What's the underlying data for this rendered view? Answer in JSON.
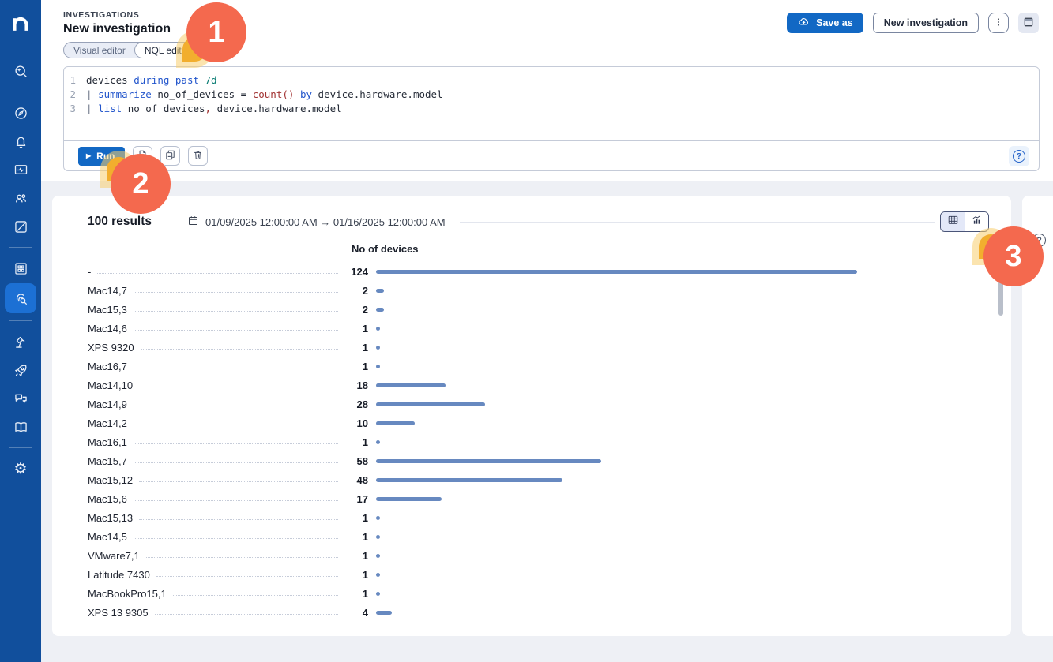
{
  "colors": {
    "sidebar_bg": "#114F9C",
    "sidebar_active_bg": "#1C70D4",
    "primary_blue": "#1268C4",
    "bar_blue": "#6789C0",
    "badge_red": "#F4694E",
    "cursor_orange": "#F2AE2E",
    "page_bg": "#EEF0F5"
  },
  "sidebar": {
    "logo": "n",
    "items": [
      {
        "name": "history-search-icon"
      },
      {
        "name": "compass-icon"
      },
      {
        "name": "bell-icon"
      },
      {
        "name": "monitor-pulse-icon"
      },
      {
        "name": "team-icon"
      },
      {
        "name": "edit-square-icon"
      },
      {
        "name": "grid-icon"
      },
      {
        "name": "investigations-icon",
        "active": true
      },
      {
        "name": "lamp-icon"
      },
      {
        "name": "rocket-icon"
      },
      {
        "name": "chat-icon"
      },
      {
        "name": "book-icon"
      },
      {
        "name": "gear-icon"
      }
    ]
  },
  "header": {
    "eyebrow": "INVESTIGATIONS",
    "title": "New investigation",
    "save_as_label": "Save as",
    "new_investigation_label": "New investigation"
  },
  "tabs": {
    "visual": "Visual editor",
    "nql": "NQL editor"
  },
  "editor": {
    "run_label": "Run",
    "lines": [
      [
        {
          "t": "devices ",
          "c": "plain"
        },
        {
          "t": "during past ",
          "c": "kw"
        },
        {
          "t": "7d",
          "c": "dur"
        }
      ],
      [
        {
          "t": "| ",
          "c": "pipe"
        },
        {
          "t": "summarize",
          "c": "kw"
        },
        {
          "t": " no_of_devices = ",
          "c": "plain"
        },
        {
          "t": "count()",
          "c": "fn"
        },
        {
          "t": " ",
          "c": "plain"
        },
        {
          "t": "by",
          "c": "kw"
        },
        {
          "t": " device.hardware.model",
          "c": "plain"
        }
      ],
      [
        {
          "t": "| ",
          "c": "pipe"
        },
        {
          "t": "list",
          "c": "kw"
        },
        {
          "t": " no_of_devices",
          "c": "plain"
        },
        {
          "t": ",",
          "c": "fn"
        },
        {
          "t": " device.hardware.model",
          "c": "plain"
        }
      ]
    ]
  },
  "results": {
    "count": "100 results",
    "date_range": "01/09/2025 12:00:00 AM → 01/16/2025 12:00:00 AM"
  },
  "chart_data": {
    "type": "bar",
    "orientation": "horizontal",
    "title": "No of devices",
    "categories": [
      "-",
      "Mac14,7",
      "Mac15,3",
      "Mac14,6",
      "XPS 9320",
      "Mac16,7",
      "Mac14,10",
      "Mac14,9",
      "Mac14,2",
      "Mac16,1",
      "Mac15,7",
      "Mac15,12",
      "Mac15,6",
      "Mac15,13",
      "Mac14,5",
      "VMware7,1",
      "Latitude 7430",
      "MacBookPro15,1",
      "XPS 13 9305"
    ],
    "values": [
      124,
      2,
      2,
      1,
      1,
      1,
      18,
      28,
      10,
      1,
      58,
      48,
      17,
      1,
      1,
      1,
      1,
      1,
      4
    ],
    "xlim": [
      0,
      124
    ],
    "grid": false,
    "legend": "none",
    "bar_color": "#6789C0"
  },
  "annotations": [
    {
      "label": "1"
    },
    {
      "label": "2"
    },
    {
      "label": "3"
    }
  ]
}
